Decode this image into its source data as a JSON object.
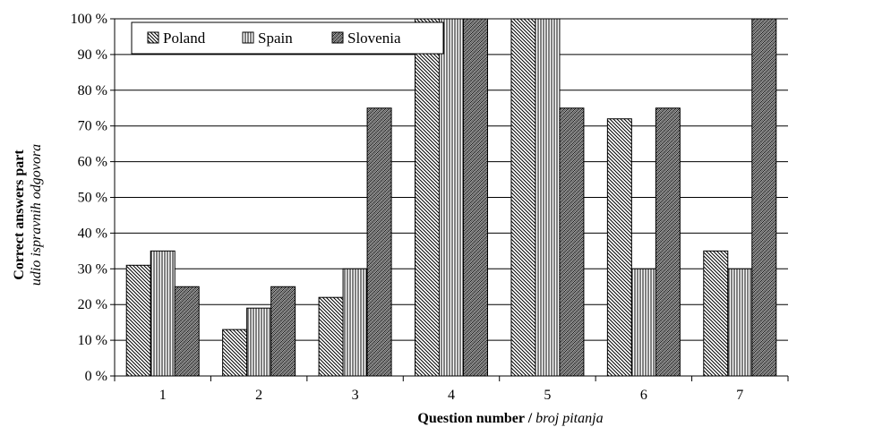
{
  "chart_data": {
    "type": "bar",
    "categories": [
      "1",
      "2",
      "3",
      "4",
      "5",
      "6",
      "7"
    ],
    "series": [
      {
        "name": "Poland",
        "pattern": "diag-down",
        "values": [
          31,
          13,
          22,
          100,
          100,
          72,
          35
        ]
      },
      {
        "name": "Spain",
        "pattern": "vertical",
        "values": [
          35,
          19,
          30,
          100,
          100,
          30,
          30
        ]
      },
      {
        "name": "Slovenia",
        "pattern": "zigzag",
        "values": [
          25,
          25,
          75,
          100,
          75,
          75,
          100
        ]
      }
    ],
    "ylim": [
      0,
      100
    ],
    "yticks": [
      "0 %",
      "10 %",
      "20 %",
      "30 %",
      "40 %",
      "50 %",
      "60 %",
      "70 %",
      "80 %",
      "90 %",
      "100 %"
    ],
    "ylabel": {
      "main": "Correct answers part",
      "sub": "udio ispravnih odgovora"
    },
    "xlabel": {
      "main": "Question number /",
      "sub": "broj pitanja"
    },
    "legend_position": "top-left",
    "grid": true,
    "colors": {
      "bar_fill": "#ffffff",
      "line": "#000000"
    }
  }
}
